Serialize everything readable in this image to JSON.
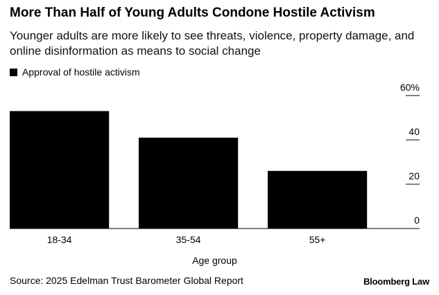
{
  "title": "More Than Half of Young Adults Condone Hostile Activism",
  "subtitle": "Younger adults are more likely to see threats, violence, property damage, and online disinformation as means to social change",
  "legend_label": "Approval of hostile activism",
  "source": "Source: 2025 Edelman Trust Barometer Global Report",
  "brand": "Bloomberg Law",
  "chart_data": {
    "type": "bar",
    "categories": [
      "18-34",
      "35-54",
      "55+"
    ],
    "series": [
      {
        "name": "Approval of hostile activism",
        "values": [
          53,
          41,
          26
        ],
        "color": "#000000"
      }
    ],
    "xlabel": "Age group",
    "ylabel": "",
    "ylim": [
      0,
      60
    ],
    "yticks": [
      0,
      20,
      40,
      60
    ],
    "ytick_labels": [
      "0",
      "20",
      "40",
      "60%"
    ],
    "y_axis_side": "right",
    "legend_position": "top-left",
    "grid": false
  }
}
